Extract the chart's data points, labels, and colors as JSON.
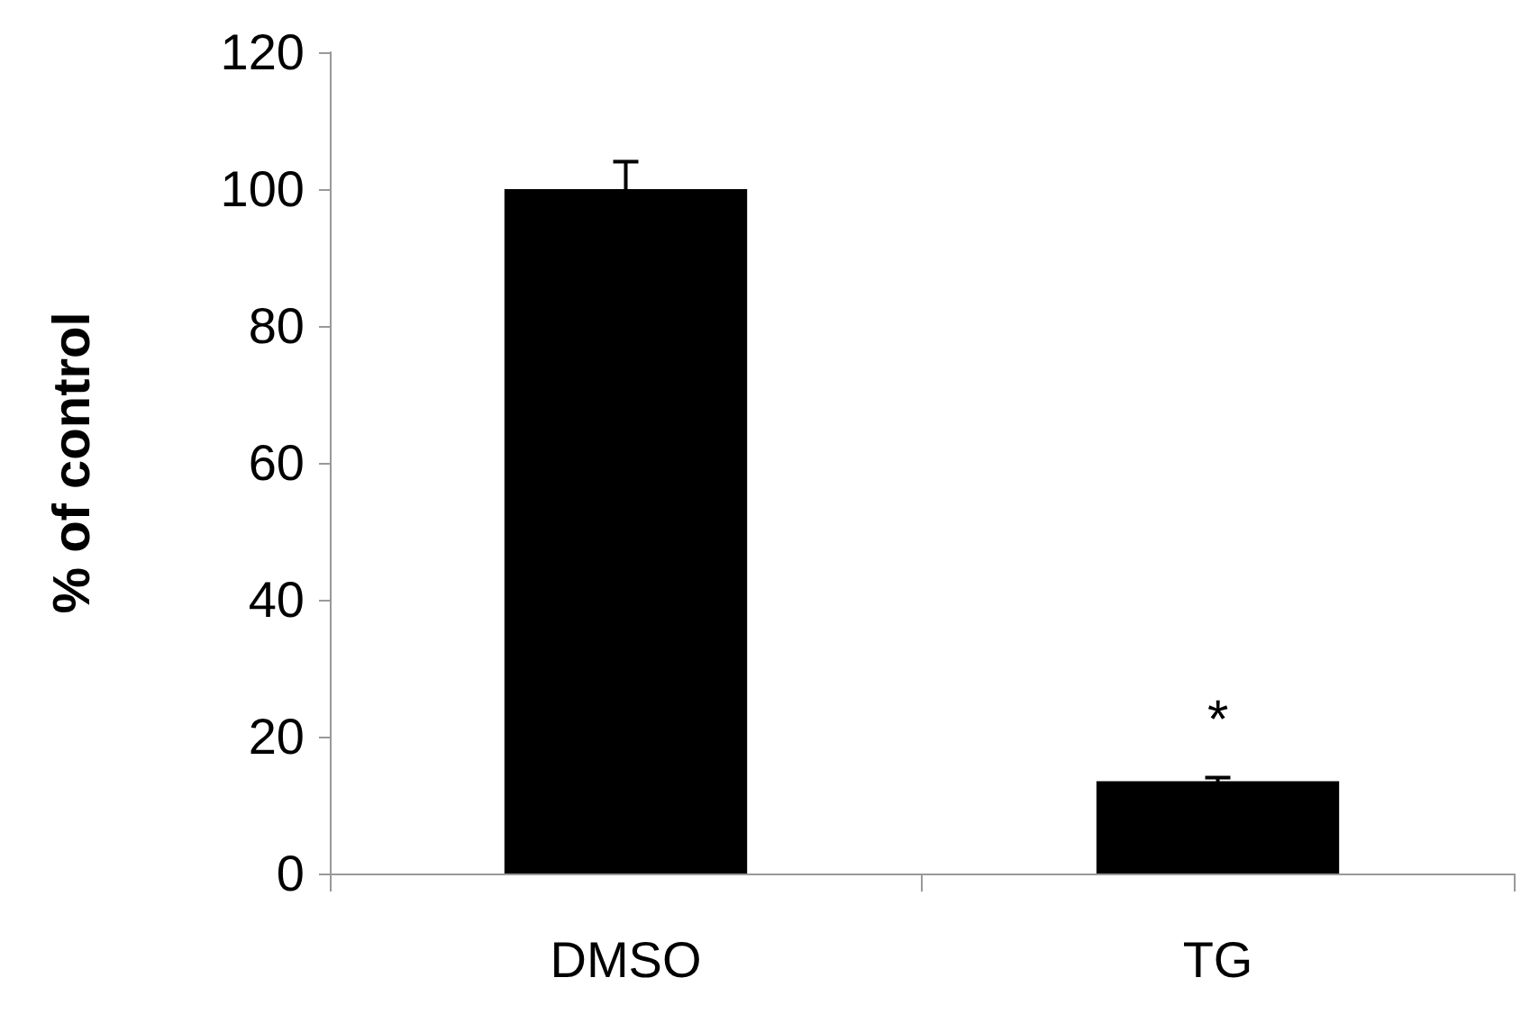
{
  "chart_data": {
    "type": "bar",
    "ylabel": "% of control",
    "categories": [
      "DMSO",
      "TG"
    ],
    "series": [
      {
        "color": "#000000",
        "values": [
          100,
          13.5
        ],
        "errors": [
          4,
          0.5
        ]
      }
    ],
    "ylim": [
      0,
      120
    ],
    "yticks": [
      0,
      20,
      40,
      60,
      80,
      100,
      120
    ],
    "grid": false,
    "annotations": [
      "*"
    ]
  }
}
